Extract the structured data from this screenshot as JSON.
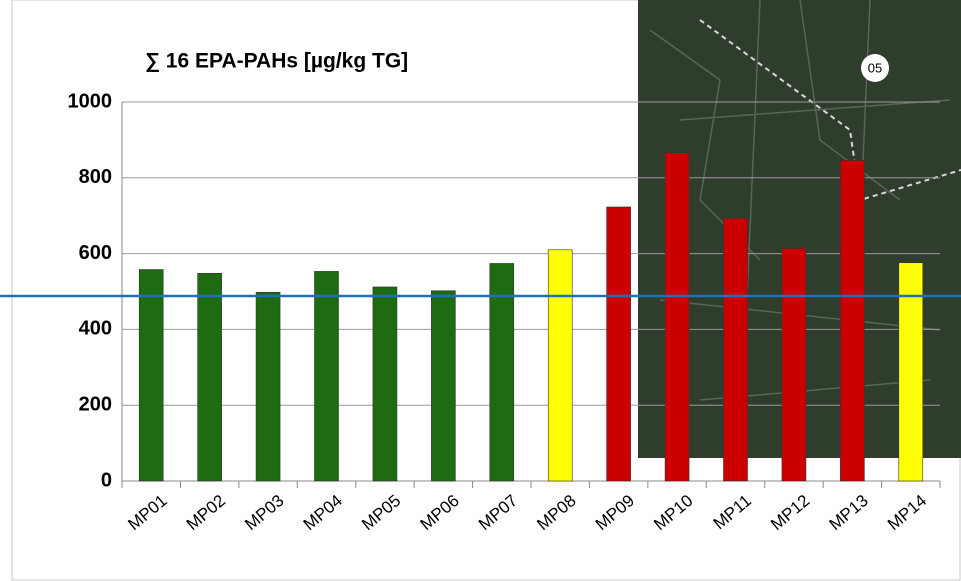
{
  "chart_data": {
    "type": "bar",
    "title": "∑ 16 EPA-PAHs [µg/kg TG]",
    "categories": [
      "MP01",
      "MP02",
      "MP03",
      "MP04",
      "MP05",
      "MP06",
      "MP07",
      "MP08",
      "MP09",
      "MP10",
      "MP11",
      "MP12",
      "MP13",
      "MP14"
    ],
    "values": [
      558,
      548,
      498,
      553,
      512,
      502,
      574,
      610,
      723,
      866,
      693,
      614,
      846,
      576
    ],
    "colors": [
      "#1e6b12",
      "#1e6b12",
      "#1e6b12",
      "#1e6b12",
      "#1e6b12",
      "#1e6b12",
      "#1e6b12",
      "#ffff00",
      "#cc0000",
      "#cc0000",
      "#cc0000",
      "#cc0000",
      "#cc0000",
      "#ffff00"
    ],
    "ylim": [
      0,
      1000
    ],
    "yticks": [
      0,
      200,
      400,
      600,
      800,
      1000
    ],
    "grid": true,
    "reference_line": {
      "value": 488,
      "color": "#1f6fbf"
    }
  }
}
